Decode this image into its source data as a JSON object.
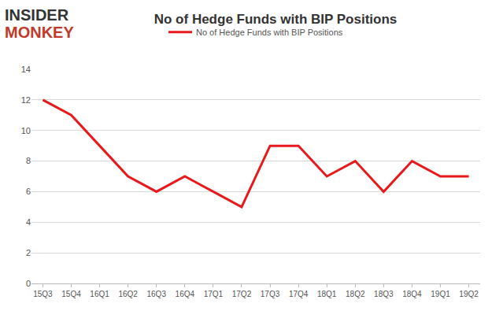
{
  "chart_data": {
    "type": "line",
    "title": "No of Hedge Funds with BIP Positions",
    "annotations": [
      {
        "text": "INSIDER"
      },
      {
        "text": "MONKEY"
      }
    ],
    "categories": [
      "15Q3",
      "15Q4",
      "16Q1",
      "16Q2",
      "16Q3",
      "16Q4",
      "17Q1",
      "17Q2",
      "17Q3",
      "17Q4",
      "18Q1",
      "18Q2",
      "18Q3",
      "18Q4",
      "19Q1",
      "19Q2"
    ],
    "series": [
      {
        "name": "No of Hedge Funds with BIP Positions",
        "color": "#e8191c",
        "values": [
          12,
          11,
          9,
          7,
          6,
          7,
          6,
          5,
          9,
          9,
          7,
          8,
          6,
          8,
          7,
          7
        ]
      }
    ],
    "ylim": [
      0,
      14
    ],
    "yticks": [
      0,
      2,
      4,
      6,
      8,
      10,
      12,
      14
    ],
    "grid": true,
    "legend": "top"
  }
}
